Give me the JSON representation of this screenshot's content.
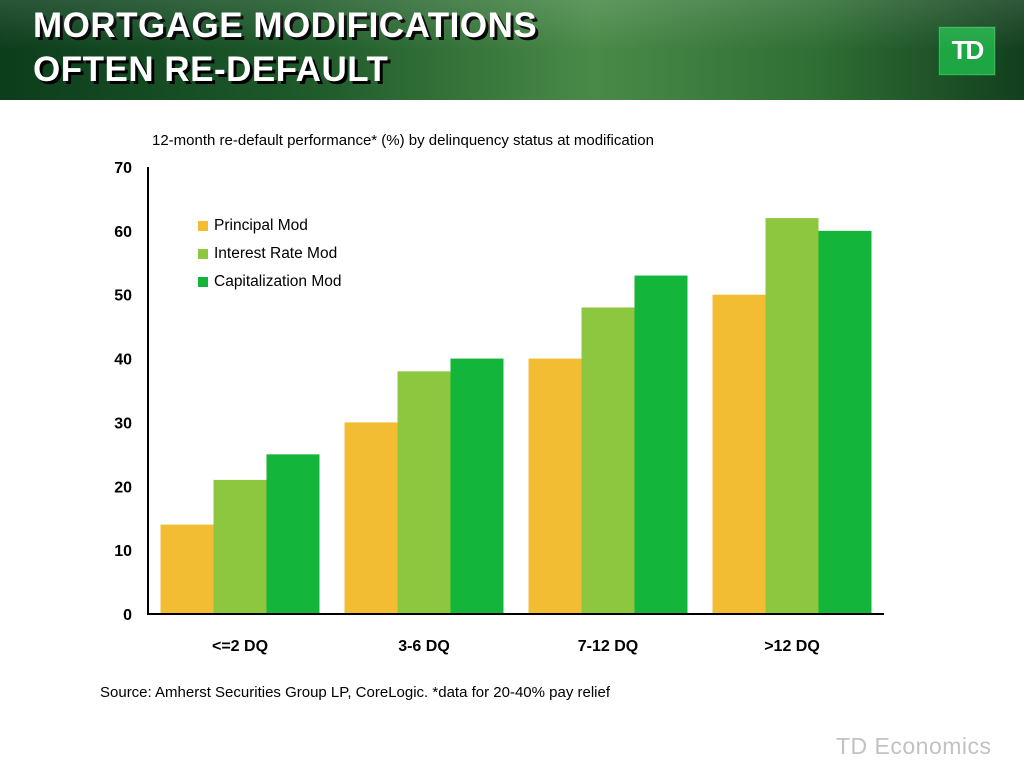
{
  "header": {
    "title_line1": "MORTGAGE MODIFICATIONS",
    "title_line2": "OFTEN RE-DEFAULT",
    "logo_text": "TD",
    "background_color": "#1e5a2a"
  },
  "chart_data": {
    "type": "bar",
    "title": "12-month re-default performance* (%) by delinquency status at modification",
    "xlabel": "",
    "ylabel": "",
    "ylim": [
      0,
      70
    ],
    "yticks": [
      0,
      10,
      20,
      30,
      40,
      50,
      60,
      70
    ],
    "categories": [
      "<=2 DQ",
      "3-6 DQ",
      "7-12 DQ",
      ">12 DQ"
    ],
    "series": [
      {
        "name": "Principal Mod",
        "color": "#f2bd33",
        "values": [
          14,
          30,
          40,
          50
        ]
      },
      {
        "name": "Interest Rate Mod",
        "color": "#8dc63f",
        "values": [
          21,
          38,
          48,
          62
        ]
      },
      {
        "name": "Capitalization Mod",
        "color": "#13b53a",
        "values": [
          25,
          40,
          53,
          60
        ]
      }
    ],
    "legend_position": "top-left",
    "grid": false
  },
  "footer": {
    "source": "Source: Amherst Securities Group LP, CoreLogic.  *data for 20-40% pay relief",
    "brand": "TD Economics"
  }
}
